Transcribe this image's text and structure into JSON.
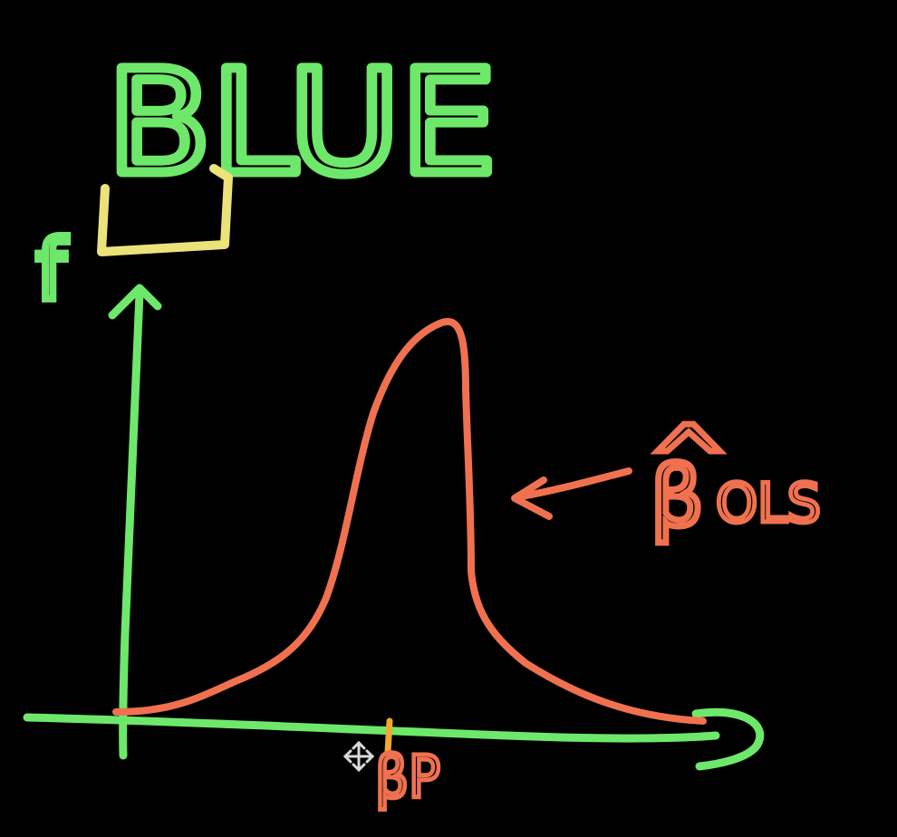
{
  "title": "BLUE",
  "highlighted_letter": "L",
  "y_axis_label": "f",
  "estimator_label": "β",
  "estimator_hat": "^",
  "estimator_subscript": "OLS",
  "true_value_label": "βP",
  "colors": {
    "background": "#000000",
    "axes": "#6ee86a",
    "title": "#6ee86a",
    "highlight_bracket": "#ece27a",
    "curve": "#f0714f",
    "labels": "#f0714f",
    "true_value_tick": "#f0a830"
  },
  "icons": {
    "cursor": "move-cursor-icon"
  }
}
